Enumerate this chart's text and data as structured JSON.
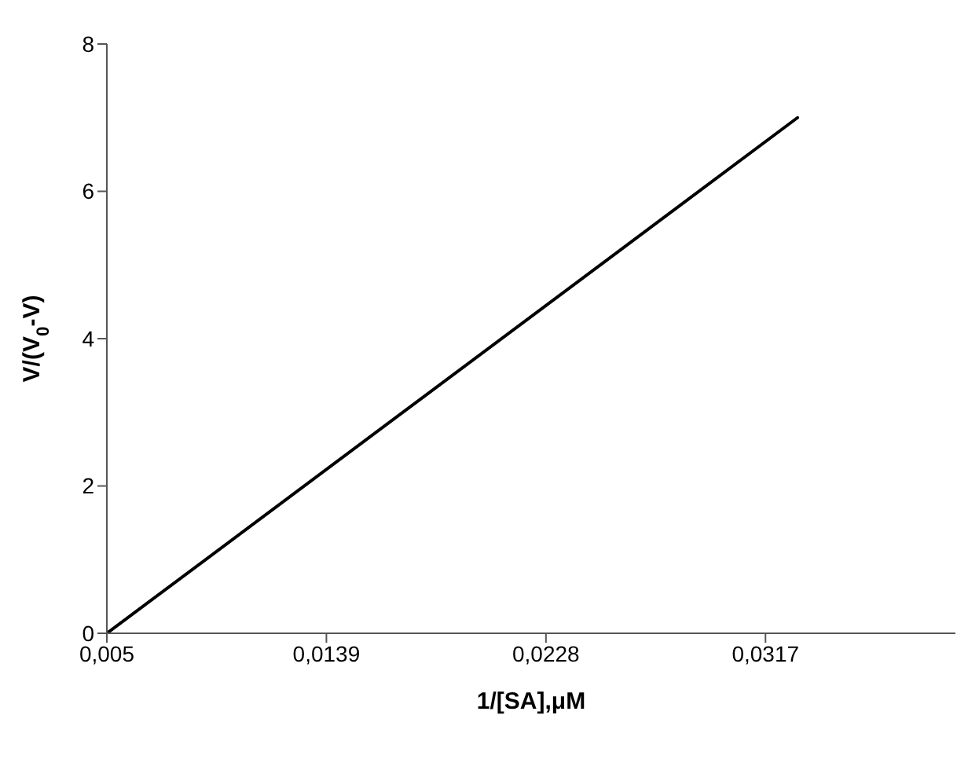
{
  "chart_data": {
    "type": "line",
    "xlabel": "1/[SA],μM",
    "ylabel": "V/(V$_{0}$-V)",
    "x": [
      0.005,
      0.033
    ],
    "series": [
      {
        "color": "#000000",
        "values": [
          0,
          7
        ]
      }
    ],
    "xlim": [
      0.005,
      0.0394
    ],
    "xticks": [
      {
        "value": 0.005,
        "label": "0,005"
      },
      {
        "value": 0.0139,
        "label": "0,0139"
      },
      {
        "value": 0.0228,
        "label": "0,0228"
      },
      {
        "value": 0.0317,
        "label": "0,0317"
      }
    ],
    "ylim": [
      0,
      8
    ],
    "yticks": [
      0,
      2,
      4,
      6,
      8
    ],
    "grid": false,
    "legend": false,
    "marker": "none",
    "line_style": "solid"
  }
}
